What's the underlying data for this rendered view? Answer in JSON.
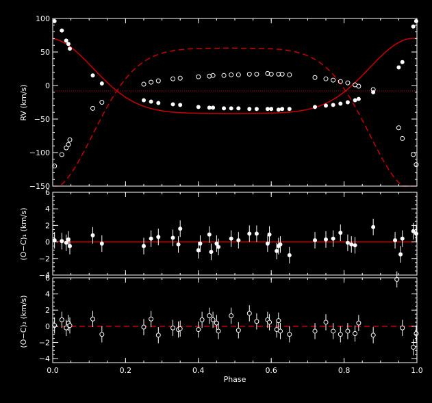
{
  "colors": {
    "background": "#000000",
    "axes": "#ffffff",
    "model": "#cc0000",
    "points": "#ffffff"
  },
  "chart_data": [
    {
      "type": "scatter",
      "panel": "radial-velocity",
      "xlim": [
        0,
        1
      ],
      "ylim": [
        -150,
        100
      ],
      "ylabel": "RV (km/s)",
      "yticks": [
        100,
        50,
        0,
        -50,
        -100,
        -150
      ],
      "ytick_labels": [
        "100",
        "50",
        "0",
        "−50",
        "−100",
        "−150"
      ],
      "systemic_velocity": -8,
      "model": {
        "K1": 56,
        "K2": 106,
        "periastron_phase": 0.99,
        "half_width": 0.12
      },
      "series": [
        {
          "name": "",
          "marker": "filled",
          "points": [
            [
              0.005,
              96
            ],
            [
              0.025,
              82
            ],
            [
              0.037,
              67
            ],
            [
              0.043,
              62
            ],
            [
              0.047,
              55
            ],
            [
              0.11,
              15
            ],
            [
              0.135,
              3
            ],
            [
              0.25,
              -22
            ],
            [
              0.27,
              -24
            ],
            [
              0.29,
              -26
            ],
            [
              0.33,
              -28
            ],
            [
              0.35,
              -29
            ],
            [
              0.4,
              -32
            ],
            [
              0.43,
              -33
            ],
            [
              0.44,
              -33
            ],
            [
              0.47,
              -34
            ],
            [
              0.49,
              -34
            ],
            [
              0.51,
              -34
            ],
            [
              0.54,
              -35
            ],
            [
              0.56,
              -35
            ],
            [
              0.59,
              -35
            ],
            [
              0.6,
              -35
            ],
            [
              0.62,
              -36
            ],
            [
              0.63,
              -35
            ],
            [
              0.65,
              -35
            ],
            [
              0.72,
              -32
            ],
            [
              0.75,
              -30
            ],
            [
              0.77,
              -29
            ],
            [
              0.79,
              -27
            ],
            [
              0.81,
              -25
            ],
            [
              0.83,
              -22
            ],
            [
              0.84,
              -20
            ],
            [
              0.88,
              -10
            ],
            [
              0.95,
              27
            ],
            [
              0.96,
              35
            ],
            [
              0.99,
              88
            ],
            [
              0.998,
              96
            ]
          ]
        },
        {
          "name": "",
          "marker": "open",
          "points": [
            [
              0.005,
              -120
            ],
            [
              0.025,
              -103
            ],
            [
              0.037,
              -93
            ],
            [
              0.043,
              -88
            ],
            [
              0.047,
              -81
            ],
            [
              0.11,
              -34
            ],
            [
              0.135,
              -25
            ],
            [
              0.25,
              2
            ],
            [
              0.27,
              5
            ],
            [
              0.29,
              7
            ],
            [
              0.33,
              10
            ],
            [
              0.35,
              11
            ],
            [
              0.4,
              13
            ],
            [
              0.43,
              14
            ],
            [
              0.44,
              15
            ],
            [
              0.47,
              15
            ],
            [
              0.49,
              16
            ],
            [
              0.51,
              16
            ],
            [
              0.54,
              17
            ],
            [
              0.56,
              17
            ],
            [
              0.59,
              18
            ],
            [
              0.6,
              17
            ],
            [
              0.62,
              17
            ],
            [
              0.63,
              17
            ],
            [
              0.65,
              16
            ],
            [
              0.72,
              12
            ],
            [
              0.75,
              10
            ],
            [
              0.77,
              8
            ],
            [
              0.79,
              6
            ],
            [
              0.81,
              4
            ],
            [
              0.83,
              1
            ],
            [
              0.84,
              -1
            ],
            [
              0.88,
              -6
            ],
            [
              0.95,
              -63
            ],
            [
              0.96,
              -79
            ],
            [
              0.99,
              -103
            ],
            [
              0.998,
              -118
            ]
          ]
        }
      ]
    },
    {
      "type": "scatter",
      "panel": "residuals-primary",
      "xlim": [
        0,
        1
      ],
      "ylim": [
        -4,
        6
      ],
      "ylabel": "(O−C)₁ (km/s)",
      "yticks": [
        6,
        4,
        2,
        0,
        -2,
        -4
      ],
      "ytick_labels": [
        "6",
        "4",
        "2",
        "0",
        "−2",
        "−4"
      ],
      "marker": "filled",
      "values": [
        [
          0.005,
          0.2
        ],
        [
          0.025,
          0.1
        ],
        [
          0.037,
          -0.1
        ],
        [
          0.043,
          0.3
        ],
        [
          0.047,
          -0.5
        ],
        [
          0.11,
          0.8
        ],
        [
          0.135,
          -0.2
        ],
        [
          0.25,
          -0.5
        ],
        [
          0.27,
          0.4
        ],
        [
          0.29,
          0.6
        ],
        [
          0.33,
          0.5
        ],
        [
          0.345,
          -0.3
        ],
        [
          0.35,
          1.6
        ],
        [
          0.4,
          -1.0
        ],
        [
          0.405,
          -0.2
        ],
        [
          0.43,
          0.9
        ],
        [
          0.435,
          -1.2
        ],
        [
          0.45,
          -0.2
        ],
        [
          0.455,
          -0.6
        ],
        [
          0.49,
          0.4
        ],
        [
          0.51,
          0.2
        ],
        [
          0.54,
          1.0
        ],
        [
          0.56,
          1.0
        ],
        [
          0.59,
          -0.2
        ],
        [
          0.595,
          0.9
        ],
        [
          0.615,
          -1.1
        ],
        [
          0.62,
          -0.5
        ],
        [
          0.625,
          -0.3
        ],
        [
          0.65,
          -1.6
        ],
        [
          0.72,
          0.2
        ],
        [
          0.75,
          0.3
        ],
        [
          0.77,
          0.4
        ],
        [
          0.79,
          1.1
        ],
        [
          0.81,
          -0.1
        ],
        [
          0.82,
          -0.3
        ],
        [
          0.83,
          -0.4
        ],
        [
          0.88,
          1.8
        ],
        [
          0.94,
          0.2
        ],
        [
          0.955,
          -1.5
        ],
        [
          0.96,
          0.4
        ],
        [
          0.99,
          1.3
        ],
        [
          0.998,
          1.0
        ]
      ]
    },
    {
      "type": "scatter",
      "panel": "residuals-secondary",
      "xlim": [
        0,
        1
      ],
      "ylim": [
        -4.5,
        6
      ],
      "xlabel": "Phase",
      "ylabel": "(O−C)₂ (km/s)",
      "xticks": [
        0,
        0.2,
        0.4,
        0.6,
        0.8,
        1.0
      ],
      "xtick_labels": [
        "0.0",
        "0.2",
        "0.4",
        "0.6",
        "0.8",
        "1.0"
      ],
      "yticks": [
        6,
        4,
        2,
        0,
        -2,
        -4
      ],
      "ytick_labels": [
        "6",
        "4",
        "2",
        "0",
        "−2",
        "−4"
      ],
      "marker": "open",
      "values": [
        [
          0.005,
          0.1
        ],
        [
          0.025,
          0.8
        ],
        [
          0.037,
          -0.2
        ],
        [
          0.043,
          0.4
        ],
        [
          0.047,
          0.1
        ],
        [
          0.11,
          0.9
        ],
        [
          0.135,
          -1.0
        ],
        [
          0.25,
          -0.1
        ],
        [
          0.27,
          0.9
        ],
        [
          0.29,
          -1.1
        ],
        [
          0.33,
          -0.2
        ],
        [
          0.345,
          -0.4
        ],
        [
          0.35,
          -0.3
        ],
        [
          0.4,
          -0.4
        ],
        [
          0.41,
          0.8
        ],
        [
          0.43,
          1.3
        ],
        [
          0.44,
          0.8
        ],
        [
          0.45,
          0.4
        ],
        [
          0.455,
          -0.6
        ],
        [
          0.49,
          1.3
        ],
        [
          0.51,
          -0.5
        ],
        [
          0.54,
          1.6
        ],
        [
          0.56,
          0.6
        ],
        [
          0.59,
          0.8
        ],
        [
          0.595,
          0.5
        ],
        [
          0.615,
          -0.4
        ],
        [
          0.62,
          0.7
        ],
        [
          0.625,
          -0.6
        ],
        [
          0.65,
          -1.0
        ],
        [
          0.72,
          -0.6
        ],
        [
          0.75,
          0.5
        ],
        [
          0.77,
          -0.6
        ],
        [
          0.79,
          -1.0
        ],
        [
          0.81,
          -0.6
        ],
        [
          0.83,
          -0.9
        ],
        [
          0.84,
          0.4
        ],
        [
          0.88,
          -1.1
        ],
        [
          0.945,
          5.8
        ],
        [
          0.96,
          -0.2
        ],
        [
          0.99,
          -2.6
        ],
        [
          0.998,
          -0.9
        ]
      ]
    }
  ]
}
